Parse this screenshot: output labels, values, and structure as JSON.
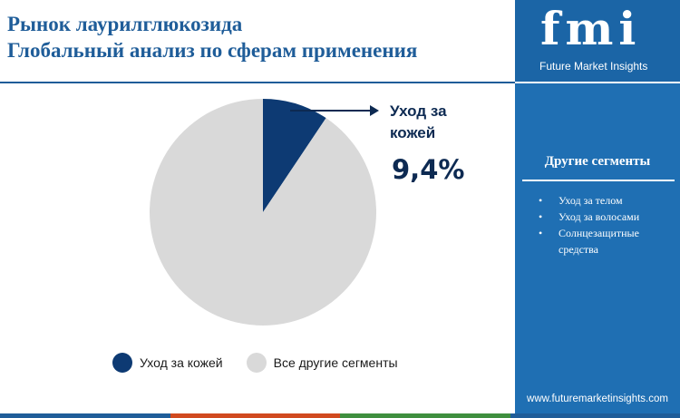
{
  "title_lines": [
    "Рынок лаурилглюкозида",
    "Глобальный анализ по сферам применения"
  ],
  "callout": {
    "label": "Уход за кожей",
    "value": "9,4%"
  },
  "chart_data": {
    "type": "pie",
    "slices": [
      {
        "name": "Уход за кожей",
        "value": 9.4,
        "color": "#0d3a73"
      },
      {
        "name": "Все другие сегменты",
        "value": 90.6,
        "color": "#d9d9d9"
      }
    ],
    "legend": [
      "Уход за кожей",
      "Все другие сегменты"
    ],
    "legend_placement": "bottom"
  },
  "sidebar": {
    "logo": "fmi",
    "logo_subtitle": "Future Market Insights",
    "other_title": "Другие сегменты",
    "other_items": [
      "Уход за телом",
      "Уход за волосами",
      "Солнцезащитные средства"
    ],
    "url": "www.futuremarketinsights.com"
  },
  "colors": {
    "accent": "#1f5d99",
    "sidebar": "#1f6fb3",
    "dark": "#0d2a52",
    "bottom_bar": [
      "#1f5d99",
      "#d14a1f",
      "#3f8f3f",
      "#1f5d99"
    ]
  }
}
